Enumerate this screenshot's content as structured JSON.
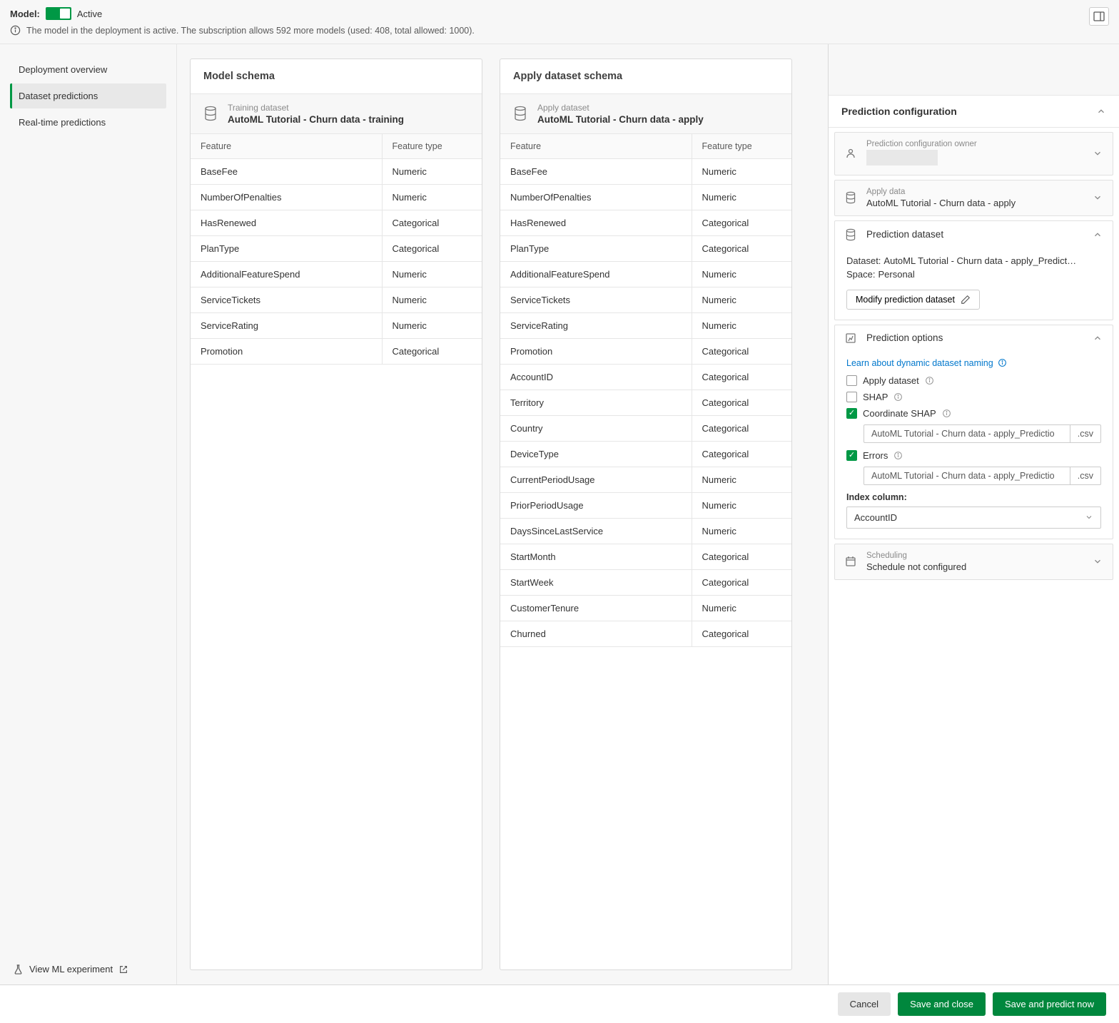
{
  "colors": {
    "accent_green": "#009845",
    "primary_green": "#00873d",
    "bg_gray": "#f7f7f7",
    "border": "#d9d9d9",
    "text_muted": "#8a8a8a",
    "link": "#0077cc"
  },
  "header": {
    "model_label": "Model:",
    "status": "Active",
    "info_text": "The model in the deployment is active. The subscription allows 592 more models (used: 408, total allowed: 1000)."
  },
  "sidebar": {
    "items": [
      {
        "label": "Deployment overview",
        "active": false
      },
      {
        "label": "Dataset predictions",
        "active": true
      },
      {
        "label": "Real-time predictions",
        "active": false
      }
    ],
    "footer_label": "View ML experiment"
  },
  "model_schema": {
    "title": "Model schema",
    "dataset_sub": "Training dataset",
    "dataset_name": "AutoML Tutorial - Churn data - training",
    "col_feature": "Feature",
    "col_type": "Feature type",
    "rows": [
      {
        "f": "BaseFee",
        "t": "Numeric"
      },
      {
        "f": "NumberOfPenalties",
        "t": "Numeric"
      },
      {
        "f": "HasRenewed",
        "t": "Categorical"
      },
      {
        "f": "PlanType",
        "t": "Categorical"
      },
      {
        "f": "AdditionalFeatureSpend",
        "t": "Numeric"
      },
      {
        "f": "ServiceTickets",
        "t": "Numeric"
      },
      {
        "f": "ServiceRating",
        "t": "Numeric"
      },
      {
        "f": "Promotion",
        "t": "Categorical"
      }
    ]
  },
  "apply_schema": {
    "title": "Apply dataset schema",
    "dataset_sub": "Apply dataset",
    "dataset_name": "AutoML Tutorial - Churn data - apply",
    "col_feature": "Feature",
    "col_type": "Feature type",
    "rows": [
      {
        "f": "BaseFee",
        "t": "Numeric"
      },
      {
        "f": "NumberOfPenalties",
        "t": "Numeric"
      },
      {
        "f": "HasRenewed",
        "t": "Categorical"
      },
      {
        "f": "PlanType",
        "t": "Categorical"
      },
      {
        "f": "AdditionalFeatureSpend",
        "t": "Numeric"
      },
      {
        "f": "ServiceTickets",
        "t": "Numeric"
      },
      {
        "f": "ServiceRating",
        "t": "Numeric"
      },
      {
        "f": "Promotion",
        "t": "Categorical"
      },
      {
        "f": "AccountID",
        "t": "Categorical"
      },
      {
        "f": "Territory",
        "t": "Categorical"
      },
      {
        "f": "Country",
        "t": "Categorical"
      },
      {
        "f": "DeviceType",
        "t": "Categorical"
      },
      {
        "f": "CurrentPeriodUsage",
        "t": "Numeric"
      },
      {
        "f": "PriorPeriodUsage",
        "t": "Numeric"
      },
      {
        "f": "DaysSinceLastService",
        "t": "Numeric"
      },
      {
        "f": "StartMonth",
        "t": "Categorical"
      },
      {
        "f": "StartWeek",
        "t": "Categorical"
      },
      {
        "f": "CustomerTenure",
        "t": "Numeric"
      },
      {
        "f": "Churned",
        "t": "Categorical"
      }
    ]
  },
  "right_panel": {
    "title": "Prediction configuration",
    "owner": {
      "sub": "Prediction configuration owner",
      "value": ""
    },
    "apply_data": {
      "sub": "Apply data",
      "value": "AutoML Tutorial - Churn data - apply"
    },
    "pred_dataset": {
      "title": "Prediction dataset",
      "dataset_label": "Dataset:",
      "dataset_value": "AutoML Tutorial - Churn data - apply_Predict…",
      "space_label": "Space:",
      "space_value": "Personal",
      "modify_btn": "Modify prediction dataset"
    },
    "pred_options": {
      "title": "Prediction options",
      "learn_link": "Learn about dynamic dataset naming",
      "apply_dataset_label": "Apply dataset",
      "shap_label": "SHAP",
      "coord_shap_label": "Coordinate SHAP",
      "coord_shap_value": "AutoML Tutorial - Churn data - apply_Predictio",
      "coord_shap_ext": ".csv",
      "errors_label": "Errors",
      "errors_value": "AutoML Tutorial - Churn data - apply_Predictio",
      "errors_ext": ".csv",
      "index_label": "Index column:",
      "index_value": "AccountID"
    },
    "scheduling": {
      "sub": "Scheduling",
      "value": "Schedule not configured"
    }
  },
  "footer": {
    "cancel": "Cancel",
    "save_close": "Save and close",
    "save_predict": "Save and predict now"
  }
}
